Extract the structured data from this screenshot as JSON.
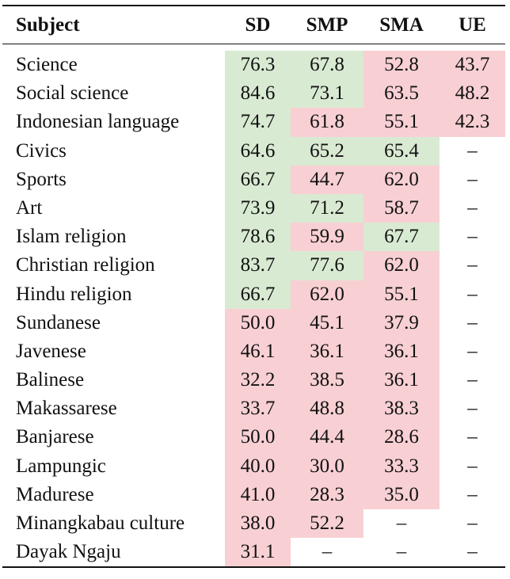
{
  "table": {
    "headers": [
      "Subject",
      "SD",
      "SMP",
      "SMA",
      "UE"
    ],
    "colors": {
      "good": "#d9ead3",
      "bad": "#f8d0d3"
    },
    "rows": [
      {
        "subject": "Science",
        "sd": {
          "v": "76.3",
          "c": "good"
        },
        "smp": {
          "v": "67.8",
          "c": "good"
        },
        "sma": {
          "v": "52.8",
          "c": "bad"
        },
        "ue": {
          "v": "43.7",
          "c": "bad"
        }
      },
      {
        "subject": "Social science",
        "sd": {
          "v": "84.6",
          "c": "good"
        },
        "smp": {
          "v": "73.1",
          "c": "good"
        },
        "sma": {
          "v": "63.5",
          "c": "bad"
        },
        "ue": {
          "v": "48.2",
          "c": "bad"
        }
      },
      {
        "subject": "Indonesian language",
        "sd": {
          "v": "74.7",
          "c": "good"
        },
        "smp": {
          "v": "61.8",
          "c": "bad"
        },
        "sma": {
          "v": "55.1",
          "c": "bad"
        },
        "ue": {
          "v": "42.3",
          "c": "bad"
        }
      },
      {
        "subject": "Civics",
        "sd": {
          "v": "64.6",
          "c": "good"
        },
        "smp": {
          "v": "65.2",
          "c": "good"
        },
        "sma": {
          "v": "65.4",
          "c": "good"
        },
        "ue": {
          "v": "–",
          "c": ""
        }
      },
      {
        "subject": "Sports",
        "sd": {
          "v": "66.7",
          "c": "good"
        },
        "smp": {
          "v": "44.7",
          "c": "bad"
        },
        "sma": {
          "v": "62.0",
          "c": "bad"
        },
        "ue": {
          "v": "–",
          "c": ""
        }
      },
      {
        "subject": "Art",
        "sd": {
          "v": "73.9",
          "c": "good"
        },
        "smp": {
          "v": "71.2",
          "c": "good"
        },
        "sma": {
          "v": "58.7",
          "c": "bad"
        },
        "ue": {
          "v": "–",
          "c": ""
        }
      },
      {
        "subject": "Islam religion",
        "sd": {
          "v": "78.6",
          "c": "good"
        },
        "smp": {
          "v": "59.9",
          "c": "bad"
        },
        "sma": {
          "v": "67.7",
          "c": "good"
        },
        "ue": {
          "v": "–",
          "c": ""
        }
      },
      {
        "subject": "Christian religion",
        "sd": {
          "v": "83.7",
          "c": "good"
        },
        "smp": {
          "v": "77.6",
          "c": "good"
        },
        "sma": {
          "v": "62.0",
          "c": "bad"
        },
        "ue": {
          "v": "–",
          "c": ""
        }
      },
      {
        "subject": "Hindu religion",
        "sd": {
          "v": "66.7",
          "c": "good"
        },
        "smp": {
          "v": "62.0",
          "c": "bad"
        },
        "sma": {
          "v": "55.1",
          "c": "bad"
        },
        "ue": {
          "v": "–",
          "c": ""
        }
      },
      {
        "subject": "Sundanese",
        "sd": {
          "v": "50.0",
          "c": "bad"
        },
        "smp": {
          "v": "45.1",
          "c": "bad"
        },
        "sma": {
          "v": "37.9",
          "c": "bad"
        },
        "ue": {
          "v": "–",
          "c": ""
        }
      },
      {
        "subject": "Javenese",
        "sd": {
          "v": "46.1",
          "c": "bad"
        },
        "smp": {
          "v": "36.1",
          "c": "bad"
        },
        "sma": {
          "v": "36.1",
          "c": "bad"
        },
        "ue": {
          "v": "–",
          "c": ""
        }
      },
      {
        "subject": "Balinese",
        "sd": {
          "v": "32.2",
          "c": "bad"
        },
        "smp": {
          "v": "38.5",
          "c": "bad"
        },
        "sma": {
          "v": "36.1",
          "c": "bad"
        },
        "ue": {
          "v": "–",
          "c": ""
        }
      },
      {
        "subject": "Makassarese",
        "sd": {
          "v": "33.7",
          "c": "bad"
        },
        "smp": {
          "v": "48.8",
          "c": "bad"
        },
        "sma": {
          "v": "38.3",
          "c": "bad"
        },
        "ue": {
          "v": "–",
          "c": ""
        }
      },
      {
        "subject": "Banjarese",
        "sd": {
          "v": "50.0",
          "c": "bad"
        },
        "smp": {
          "v": "44.4",
          "c": "bad"
        },
        "sma": {
          "v": "28.6",
          "c": "bad"
        },
        "ue": {
          "v": "–",
          "c": ""
        }
      },
      {
        "subject": "Lampungic",
        "sd": {
          "v": "40.0",
          "c": "bad"
        },
        "smp": {
          "v": "30.0",
          "c": "bad"
        },
        "sma": {
          "v": "33.3",
          "c": "bad"
        },
        "ue": {
          "v": "–",
          "c": ""
        }
      },
      {
        "subject": "Madurese",
        "sd": {
          "v": "41.0",
          "c": "bad"
        },
        "smp": {
          "v": "28.3",
          "c": "bad"
        },
        "sma": {
          "v": "35.0",
          "c": "bad"
        },
        "ue": {
          "v": "–",
          "c": ""
        }
      },
      {
        "subject": "Minangkabau culture",
        "sd": {
          "v": "38.0",
          "c": "bad"
        },
        "smp": {
          "v": "52.2",
          "c": "bad"
        },
        "sma": {
          "v": "–",
          "c": ""
        },
        "ue": {
          "v": "–",
          "c": ""
        }
      },
      {
        "subject": "Dayak Ngaju",
        "sd": {
          "v": "31.1",
          "c": "bad"
        },
        "smp": {
          "v": "–",
          "c": ""
        },
        "sma": {
          "v": "–",
          "c": ""
        },
        "ue": {
          "v": "–",
          "c": ""
        }
      }
    ]
  }
}
